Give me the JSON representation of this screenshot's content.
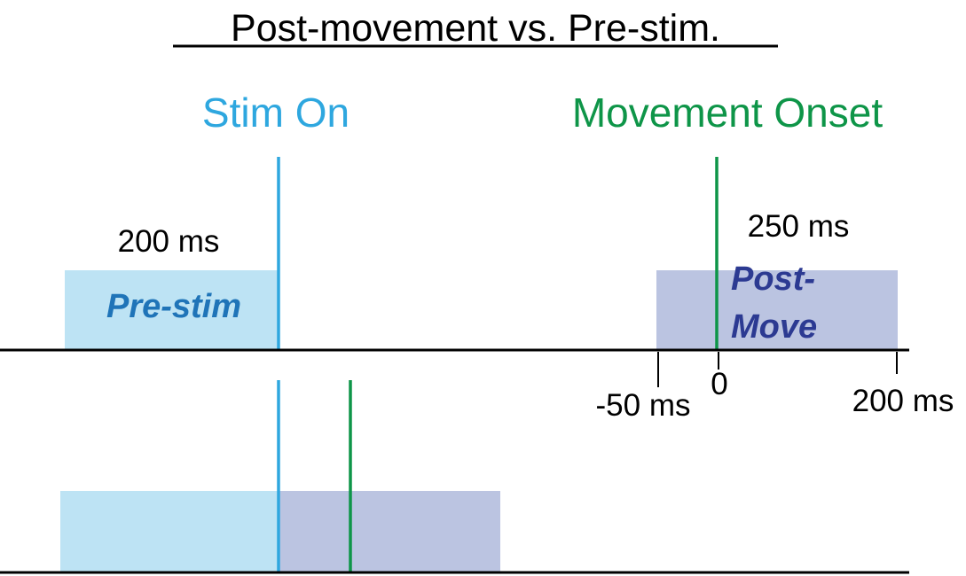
{
  "title": "Post-movement vs. Pre-stim.",
  "events": {
    "stim_on": "Stim On",
    "movement_onset": "Movement Onset"
  },
  "durations": {
    "pre_stim": "200 ms",
    "post_move": "250 ms"
  },
  "windows": {
    "pre_stim": "Pre-stim",
    "post_move_line1": "Post-",
    "post_move_line2": "Move"
  },
  "ticks": {
    "minus_50": "-50 ms",
    "zero": "0",
    "plus_200": "200 ms"
  },
  "colors": {
    "stim_line": "#2ea7df",
    "move_line": "#0e9548",
    "pre_stim_fill": "#bde3f4",
    "post_move_fill": "#bbc4e1",
    "pre_stim_text": "#1f74b8",
    "post_move_text": "#2c3a92"
  }
}
